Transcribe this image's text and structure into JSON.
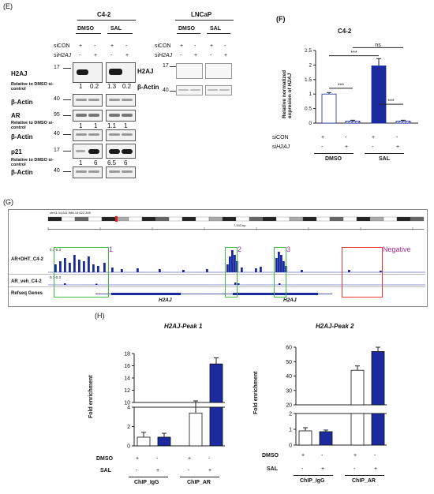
{
  "panel_e": {
    "label": "(E)",
    "c42": {
      "title": "C4-2",
      "groups": [
        "DMSO",
        "SAL"
      ],
      "sicon_label": "siCON",
      "sih2aj_label": "siH2AJ",
      "pm": [
        "+",
        "-",
        "+",
        "-"
      ],
      "mp": [
        "-",
        "+",
        "-",
        "+"
      ],
      "rows": [
        {
          "name": "H2AJ",
          "mw": "17",
          "sub": "Relative to DMSO si-control",
          "values": [
            "1",
            "0.2",
            "1.3",
            "0.2"
          ]
        },
        {
          "name": "β-Actin",
          "mw": "40"
        },
        {
          "name": "AR",
          "mw": "95",
          "sub": "Relative to DMSO si-control",
          "values": [
            "1",
            "1",
            "1.1",
            "1"
          ]
        },
        {
          "name": "β-Actin",
          "mw": "40"
        },
        {
          "name": "p21",
          "mw": "17",
          "sub": "Relative to DMSO si-control",
          "values": [
            "1",
            "6",
            "6.5",
            "6"
          ]
        },
        {
          "name": "β-Actin",
          "mw": "40"
        }
      ]
    },
    "lncap": {
      "title": "LNCaP",
      "groups": [
        "DMSO",
        "SAL"
      ],
      "sicon_label": "siCON",
      "sih2aj_label": "siH2AJ",
      "rows": [
        {
          "name": "H2AJ",
          "mw": "17"
        },
        {
          "name": "β-Actin",
          "mw": "40"
        }
      ]
    }
  },
  "panel_f": {
    "label": "(F)",
    "title": "C4-2",
    "ylabel": "Relative normalized expresion of H2AJ",
    "row1_label": "siCON",
    "row2_label": "siH2AJ",
    "group_labels": [
      "DMSO",
      "SAL"
    ],
    "sig": [
      "***",
      "***",
      "***",
      "ns"
    ],
    "chart_data": {
      "type": "bar",
      "categories": [
        "DMSO siCON",
        "DMSO siH2AJ",
        "SAL siCON",
        "SAL siH2AJ"
      ],
      "values": [
        1.0,
        0.07,
        1.97,
        0.07
      ],
      "errors": [
        0.05,
        0.03,
        0.25,
        0.03
      ],
      "colors": [
        "#ffffff",
        "#bfc8e8",
        "#1b2a9e",
        "#bfc8e8"
      ],
      "ylim": [
        0,
        2.5
      ],
      "yticks": [
        "0",
        "0.5",
        "1",
        "1.5",
        "2",
        "2.5"
      ],
      "sicon_row": [
        "+",
        "-",
        "+",
        "-"
      ],
      "sih2aj_row": [
        "-",
        "+",
        "-",
        "+"
      ]
    }
  },
  "panel_g": {
    "label": "(G)",
    "coords": "chr11:14,611,986-14,622,305",
    "scale_label": "7,533 bp",
    "track1": "AR+DHT_C4-2",
    "track2": "AR_veh_C4-2",
    "track3": "Refseq Genes",
    "range": "0.1-0.3",
    "peaks": [
      "1",
      "2",
      "3",
      "Negative"
    ],
    "gene": "H2AJ"
  },
  "panel_h": {
    "label": "(H)",
    "dmso_label": "DMSO",
    "sal_label": "SAL",
    "dmso_row": [
      "+",
      "-",
      "+",
      "-"
    ],
    "sal_row": [
      "-",
      "+",
      "-",
      "+"
    ],
    "group_labels": [
      "ChIP_IgG",
      "ChIP_AR"
    ],
    "ylabel": "Fold enrichment",
    "colors": {
      "dmso": "#ffffff",
      "sal": "#1b2a9e"
    },
    "chart_data": [
      {
        "type": "bar",
        "title": "H2AJ-Peak 1",
        "categories": [
          "ChIP_IgG DMSO",
          "ChIP_IgG SAL",
          "ChIP_AR DMSO",
          "ChIP_AR SAL"
        ],
        "values": [
          0.9,
          0.9,
          3.4,
          16.3
        ],
        "errors": [
          0.5,
          0.4,
          1.0,
          1.0
        ],
        "yticks_top": [
          "10",
          "12",
          "14",
          "16",
          "18"
        ],
        "yticks_bottom": [
          "0",
          "2",
          "4"
        ]
      },
      {
        "type": "bar",
        "title": "H2AJ-Peak 2",
        "categories": [
          "ChIP_IgG DMSO",
          "ChIP_IgG SAL",
          "ChIP_AR DMSO",
          "ChIP_AR SAL"
        ],
        "values": [
          0.9,
          0.85,
          44,
          57
        ],
        "errors": [
          0.2,
          0.1,
          3,
          12
        ],
        "yticks_top": [
          "20",
          "30",
          "40",
          "50",
          "60"
        ],
        "yticks_bottom": [
          "0",
          "1",
          "2"
        ]
      }
    ]
  }
}
